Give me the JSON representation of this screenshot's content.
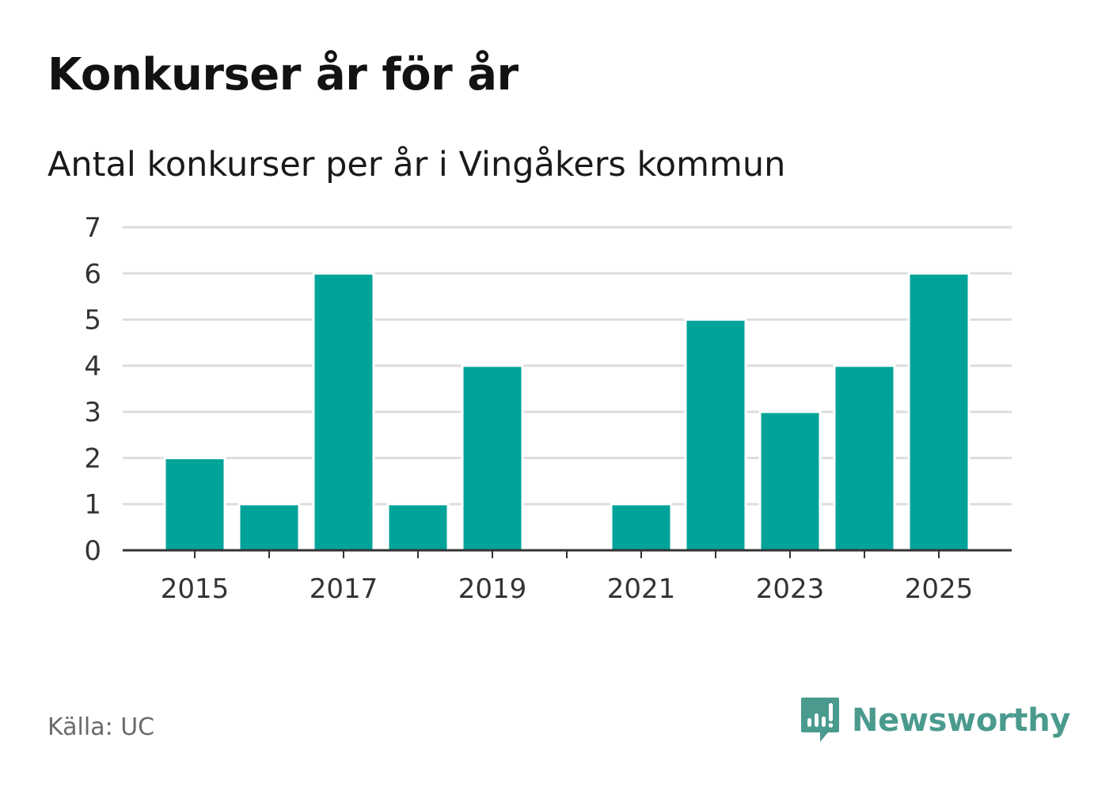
{
  "header": {
    "title": "Konkurser år för år",
    "subtitle": "Antal konkurser per år i Vingåkers kommun"
  },
  "footer": {
    "source": "Källa: UC",
    "brand": "Newsworthy"
  },
  "colors": {
    "bar": "#00a39a",
    "grid": "#dddddd",
    "axis": "#333333",
    "tick_text": "#333333",
    "brand": "#4a9a8e"
  },
  "chart_data": {
    "type": "bar",
    "categories": [
      "2015",
      "2016",
      "2017",
      "2018",
      "2019",
      "2020",
      "2021",
      "2022",
      "2023",
      "2024",
      "2025"
    ],
    "values": [
      2,
      1,
      6,
      1,
      4,
      0,
      1,
      5,
      3,
      4,
      6
    ],
    "x_tick_labels": [
      "2015",
      "2017",
      "2019",
      "2021",
      "2023",
      "2025"
    ],
    "y_ticks": [
      0,
      1,
      2,
      3,
      4,
      5,
      6,
      7
    ],
    "ylim": [
      0,
      7
    ],
    "xlabel": "",
    "ylabel": "",
    "grid": true
  }
}
